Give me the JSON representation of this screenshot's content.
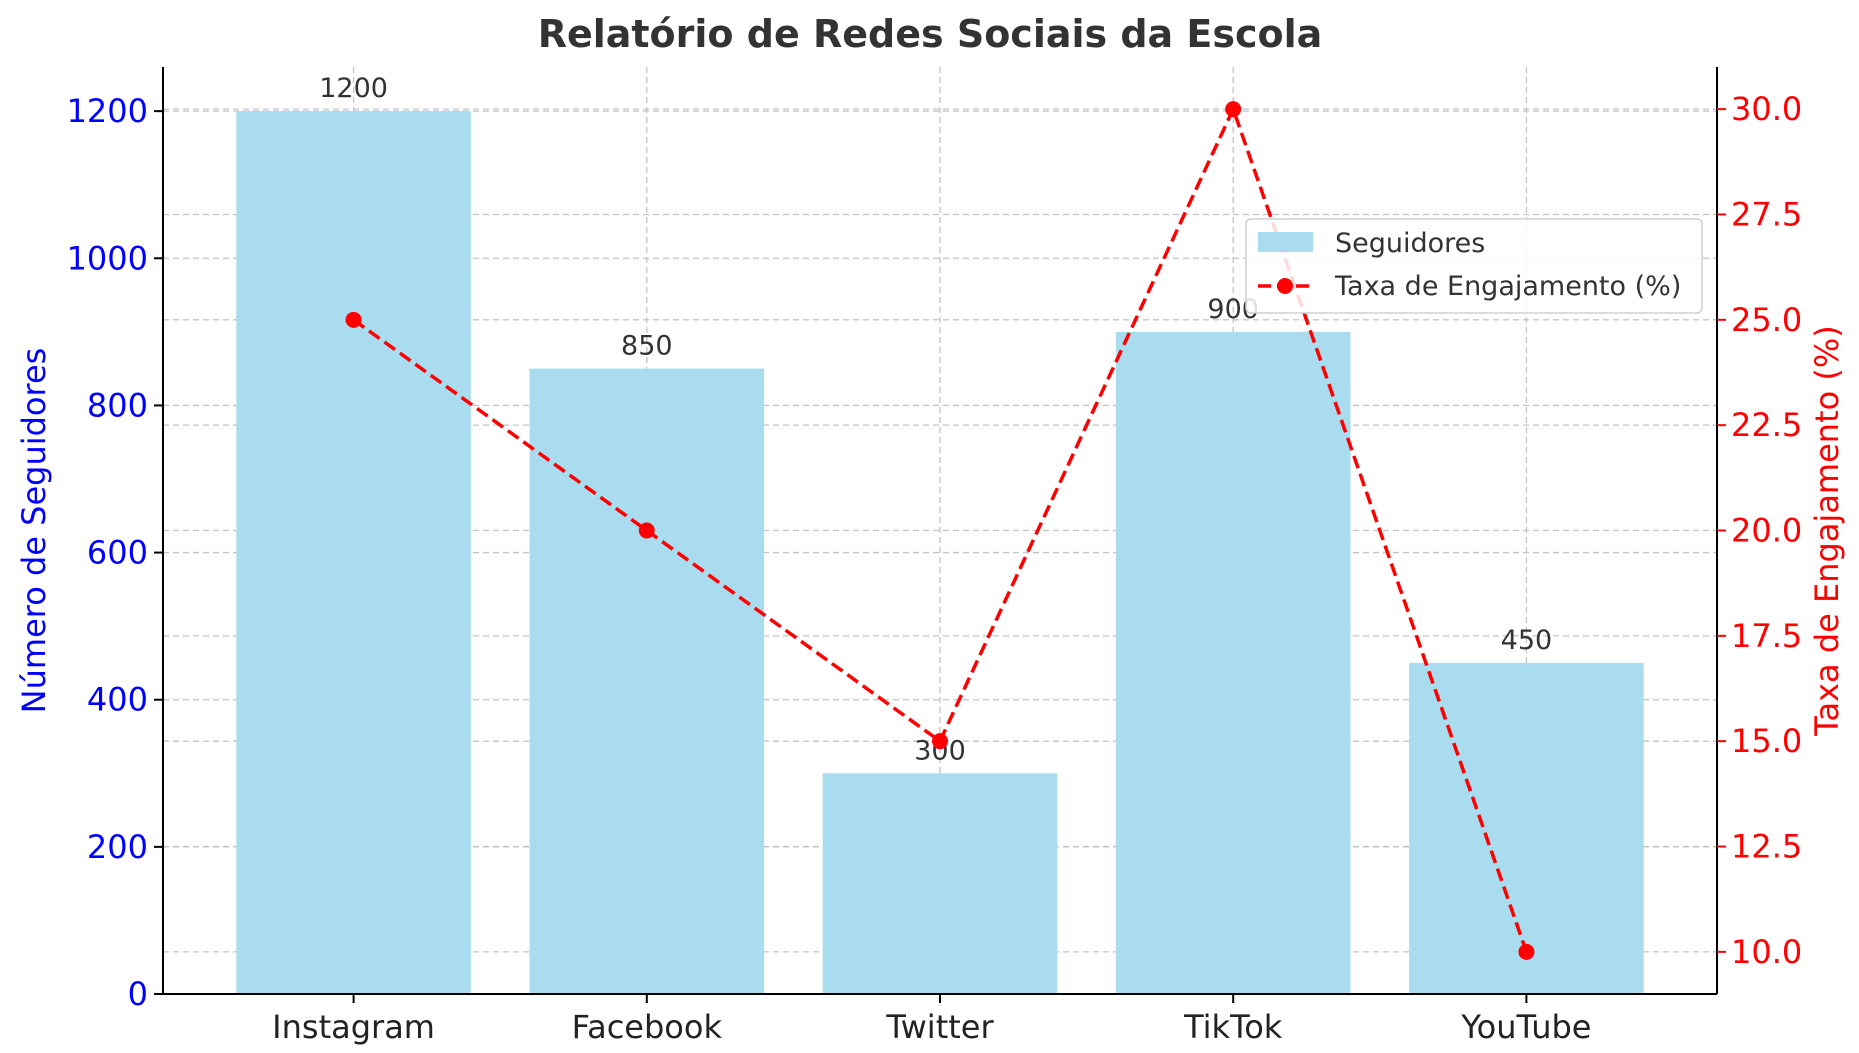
{
  "chart_data": {
    "type": "bar",
    "title": "Relatório de Redes Sociais da Escola",
    "categories": [
      "Instagram",
      "Facebook",
      "Twitter",
      "TikTok",
      "YouTube"
    ],
    "series": [
      {
        "name": "Seguidores",
        "type": "bar",
        "axis": "left",
        "values": [
          1200,
          850,
          300,
          900,
          450
        ],
        "color": "#a8dcee"
      },
      {
        "name": "Taxa de Engajamento (%)",
        "type": "line",
        "axis": "right",
        "values": [
          25.0,
          20.0,
          15.0,
          30.0,
          10.0
        ],
        "color": "#ff0000",
        "line_style": "dashed",
        "marker": "circle"
      }
    ],
    "y_left": {
      "label": "Número de Seguidores",
      "ylim": [
        0,
        1260
      ],
      "ticks": [
        0,
        200,
        400,
        600,
        800,
        1000,
        1200
      ],
      "tick_labels": [
        "0",
        "200",
        "400",
        "600",
        "800",
        "1000",
        "1200"
      ],
      "color": "#0000ff"
    },
    "y_right": {
      "label": "Taxa de Engajamento (%)",
      "ylim": [
        9.0,
        31.0
      ],
      "ticks": [
        10.0,
        12.5,
        15.0,
        17.5,
        20.0,
        22.5,
        25.0,
        27.5,
        30.0
      ],
      "tick_labels": [
        "10.0",
        "12.5",
        "15.0",
        "17.5",
        "20.0",
        "22.5",
        "25.0",
        "27.5",
        "30.0"
      ],
      "color": "#ff0000"
    },
    "xlabel": "",
    "grid": true,
    "legend_position": "right",
    "bar_value_labels": [
      "1200",
      "850",
      "300",
      "900",
      "450"
    ]
  }
}
